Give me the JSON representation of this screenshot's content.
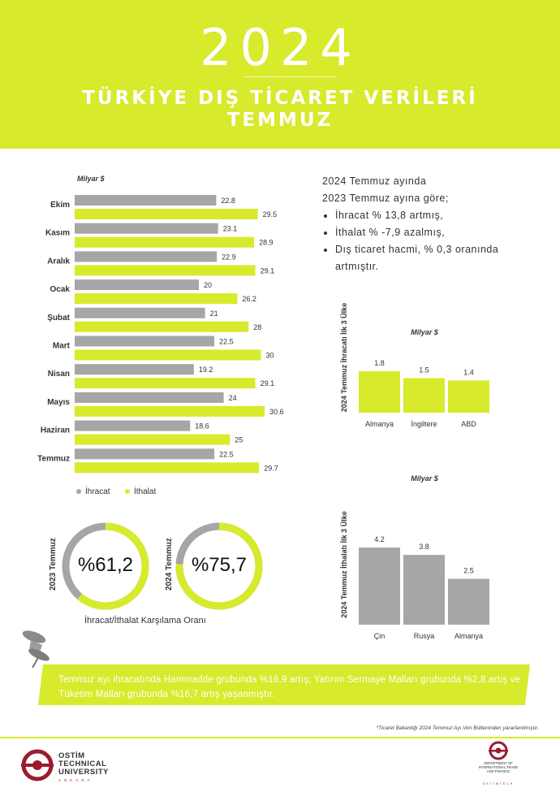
{
  "header": {
    "year": "2024",
    "title_line1": "TÜRKİYE DIŞ TİCARET VERİLERİ",
    "title_line2": "TEMMUZ"
  },
  "colors": {
    "accent": "#d7ea2b",
    "grey": "#a6a6a6",
    "brand": "#9b1b2f"
  },
  "summary": {
    "line1": "2024  Temmuz ayında",
    "line2": "2023  Temmuz ayına göre;",
    "bullets": [
      "İhracat % 13,8  artmış,",
      "İthalat  % -7,9  azalmış,",
      "Dış ticaret hacmi, % 0,3 oranında artmıştır."
    ]
  },
  "chart_data": [
    {
      "type": "bar",
      "orientation": "horizontal",
      "unit_label": "Milyar $",
      "categories": [
        "Ekim",
        "Kasım",
        "Aralık",
        "Ocak",
        "Şubat",
        "Mart",
        "Nisan",
        "Mayıs",
        "Haziran",
        "Temmuz"
      ],
      "series": [
        {
          "name": "İhracat",
          "color": "#a6a6a6",
          "values": [
            22.8,
            23.1,
            22.9,
            20,
            21,
            22.5,
            19.2,
            24,
            18.6,
            22.5
          ],
          "labels": [
            "22.8",
            "23.1",
            "22.9",
            "20",
            "21",
            "22.5",
            "19.2",
            "24",
            "18.6",
            "22.5"
          ]
        },
        {
          "name": "İthalat",
          "color": "#d7ea2b",
          "values": [
            29.5,
            28.9,
            29.1,
            26.2,
            28,
            30,
            29.1,
            30.6,
            25,
            29.7
          ],
          "labels": [
            "29.5",
            "28.9",
            "29.1",
            "26.2",
            "28",
            "30",
            "29.1",
            "30.6",
            "25",
            "29.7"
          ]
        }
      ],
      "legend_position": "bottom-left"
    },
    {
      "type": "bar",
      "unit_label": "Milyar $",
      "axis_title": "2024 Temmuz İhracatı İlk 3 Ülke",
      "categories": [
        "Almanya",
        "İngiltere",
        "ABD"
      ],
      "values": [
        1.8,
        1.5,
        1.4
      ],
      "labels": [
        "1.8",
        "1.5",
        "1.4"
      ],
      "color": "#d7ea2b"
    },
    {
      "type": "bar",
      "unit_label": "Milyar $",
      "axis_title": "2024 Temmuz İthalatı İlk 3 Ülke",
      "categories": [
        "Çin",
        "Rusya",
        "Almanya"
      ],
      "values": [
        4.2,
        3.8,
        2.5
      ],
      "labels": [
        "4.2",
        "3.8",
        "2.5"
      ],
      "color": "#a6a6a6"
    },
    {
      "type": "pie",
      "variant": "donut",
      "label": "2023 Temmuz",
      "value_text": "%61,2",
      "value": 61.2
    },
    {
      "type": "pie",
      "variant": "donut",
      "label": "2024 Temmuz",
      "value_text": "%75,7",
      "value": 75.7
    }
  ],
  "ratio_caption": "İhracat/İthalat Karşılama Oranı",
  "banner_text": "Temmuz ayı ihracatında Hammadde grubunda %16,9 artış; Yatırım Sermaye Malları grubunda %2,8 artış ve Tüketim Malları grubunda %16,7 artış yaşanmıştır.",
  "footnote": "*Ticaret Bakanlığı 2024 Temmuz Ayı Veri Bülteninden yararlanılmıştır.",
  "footer": {
    "left_logo_lines": [
      "OSTİM",
      "TECHNICAL",
      "UNIVERSITY"
    ],
    "left_logo_sub": "ANKARA",
    "right_logo_lines": [
      "DEPARTMENT OF",
      "INTERNATIONAL TRADE",
      "AND FINANCE"
    ],
    "right_logo_sub": "OSTİMTECH"
  }
}
